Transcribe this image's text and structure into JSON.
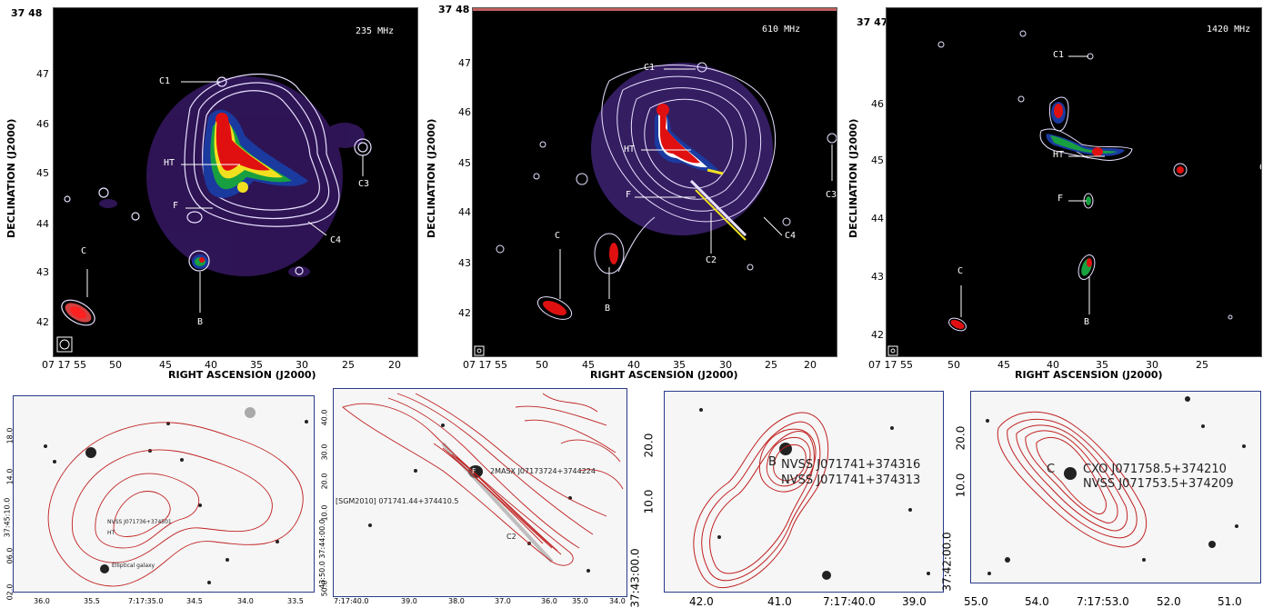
{
  "radio_panels": [
    {
      "freq": "235 MHz",
      "top_dec": "37 48",
      "dec_ticks": [
        "47",
        "46",
        "45",
        "44",
        "43",
        "42"
      ],
      "ra_ticks": [
        "07 17 55",
        "50",
        "45",
        "40",
        "35",
        "30",
        "25",
        "20"
      ],
      "labels": [
        "C1",
        "HT",
        "F",
        "C3",
        "C4",
        "C",
        "B"
      ]
    },
    {
      "freq": "610 MHz",
      "top_dec": "37 48",
      "dec_ticks": [
        "47",
        "46",
        "45",
        "44",
        "43",
        "42"
      ],
      "ra_ticks": [
        "07 17 55",
        "50",
        "45",
        "40",
        "35",
        "30",
        "25",
        "20"
      ],
      "labels": [
        "C1",
        "HT",
        "F",
        "C3",
        "C4",
        "C2",
        "C",
        "B"
      ]
    },
    {
      "freq": "1420 MHz",
      "top_dec": "37 47",
      "dec_ticks": [
        "46",
        "45",
        "44",
        "43",
        "42"
      ],
      "ra_ticks": [
        "07 17 55",
        "50",
        "45",
        "40",
        "35",
        "30",
        "25"
      ],
      "labels": [
        "C1",
        "HT",
        "F",
        "C3",
        "C",
        "B"
      ]
    }
  ],
  "axes": {
    "dec_label": "DECLINATION (J2000)",
    "ra_label": "RIGHT ASCENSION (J2000)"
  },
  "optical_panels": [
    {
      "y_ticks": [
        "18.0",
        "14.0",
        "37:45:10.0",
        "06.0",
        "02.0"
      ],
      "x_ticks": [
        "36.0",
        "35.5",
        "7:17:35.0",
        "34.5",
        "34.0",
        "33.5"
      ],
      "annotations": [
        "NVSS J071736+374501",
        "HT",
        "Elliptical galaxy"
      ]
    },
    {
      "y_ticks": [
        "40.0",
        "30.0",
        "20.0",
        "10.0",
        "43:50.0 37:44:00.0",
        "50.0"
      ],
      "x_ticks": [
        "7:17:40.0",
        "39.0",
        "38.0",
        "37.0",
        "36.0",
        "35.0",
        "34.0"
      ],
      "annotations": [
        "F",
        "2MASX J07173724+3744224",
        "[SGM2010] 071741.44+374410.5",
        "C2"
      ]
    },
    {
      "y_ticks": [
        "20.0",
        "10.0",
        "37:43:00.0"
      ],
      "x_ticks": [
        "42.0",
        "41.0",
        "7:17:40.0",
        "39.0"
      ],
      "annotations": [
        "B",
        "NVSS J071741+374316",
        "NVSS J071741+374313"
      ]
    },
    {
      "y_ticks": [
        "20.0",
        "10.0",
        "37:42:00.0"
      ],
      "x_ticks": [
        "55.0",
        "54.0",
        "7:17:53.0",
        "52.0",
        "51.0"
      ],
      "annotations": [
        "C",
        "CXO J071758.5+374210",
        "NVSS J071753.5+374209"
      ]
    }
  ]
}
